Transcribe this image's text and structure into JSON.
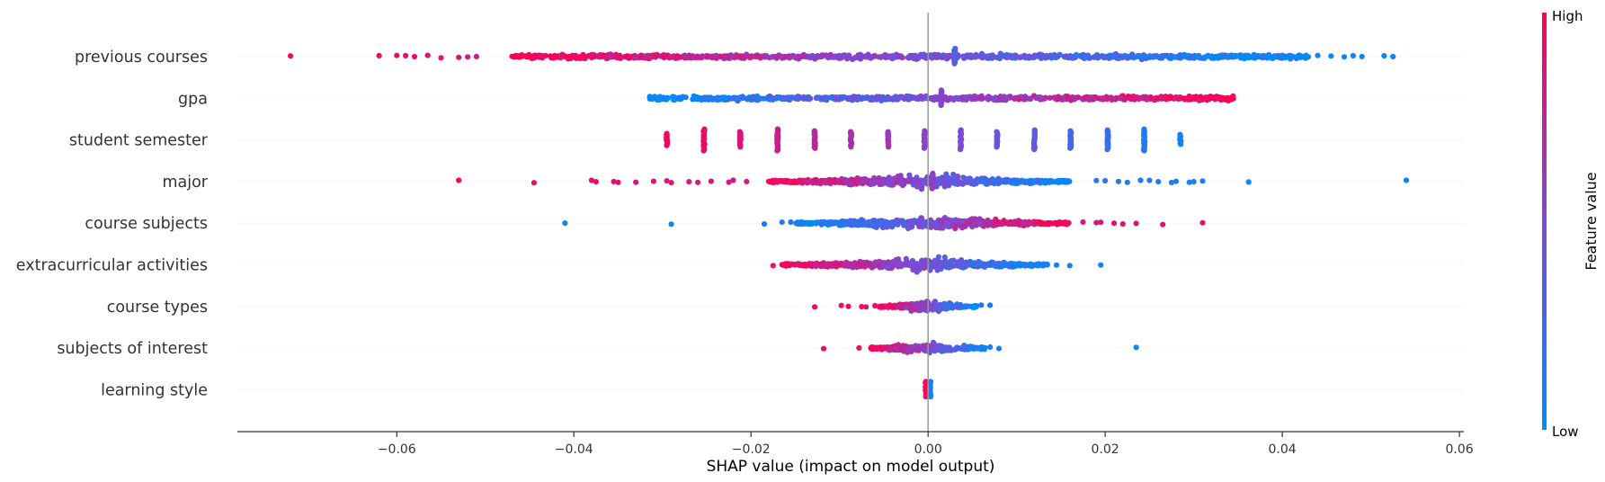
{
  "chart_data": {
    "type": "scatter",
    "subtype": "shap-beeswarm",
    "title": "",
    "xlabel": "SHAP value (impact on model output)",
    "xlim": [
      -0.078,
      0.0605
    ],
    "xticks": [
      -0.06,
      -0.04,
      -0.02,
      0.0,
      0.02,
      0.04,
      0.06
    ],
    "xtick_labels": [
      "−0.06",
      "−0.04",
      "−0.02",
      "0.00",
      "0.02",
      "0.04",
      "0.06"
    ],
    "zero_line": 0.0,
    "grid": false,
    "colorbar": {
      "title": "Feature value",
      "high_label": "High",
      "low_label": "Low",
      "low_color": "#008bfb",
      "high_color": "#ff0052",
      "placement": "right"
    },
    "features": [
      {
        "name": "previous courses",
        "shape": "wide",
        "min": -0.072,
        "max": 0.0525,
        "core": [
          -0.047,
          0.043
        ],
        "points": [
          [
            -0.072,
            0.95
          ],
          [
            -0.062,
            0.95
          ],
          [
            -0.06,
            0.93
          ],
          [
            -0.059,
            0.92
          ],
          [
            -0.058,
            0.9
          ],
          [
            -0.0565,
            0.88
          ],
          [
            -0.055,
            0.86
          ],
          [
            -0.053,
            0.84
          ],
          [
            -0.052,
            0.83
          ],
          [
            -0.051,
            0.82
          ],
          [
            0.04,
            0.12
          ],
          [
            0.041,
            0.11
          ],
          [
            0.042,
            0.1
          ],
          [
            0.044,
            0.08
          ],
          [
            0.0455,
            0.07
          ],
          [
            0.047,
            0.06
          ],
          [
            0.048,
            0.05
          ],
          [
            0.049,
            0.04
          ],
          [
            0.0515,
            0.03
          ],
          [
            0.0525,
            0.02
          ]
        ],
        "stacks": [
          {
            "x": 0.003,
            "h": 9,
            "v": 0.35
          }
        ]
      },
      {
        "name": "gpa",
        "shape": "wide",
        "min": -0.0315,
        "max": 0.0345,
        "core": [
          -0.0315,
          0.0345
        ],
        "points": [],
        "stacks": [
          {
            "x": 0.0015,
            "h": 9,
            "v": 0.55
          }
        ]
      },
      {
        "name": "student semester",
        "shape": "stacks",
        "min": -0.0295,
        "max": 0.0285,
        "core": [
          0,
          0
        ],
        "points": [],
        "stacks": [
          {
            "x": -0.0295,
            "h": 7,
            "v": 0.98
          },
          {
            "x": -0.0253,
            "h": 12,
            "v": 0.92
          },
          {
            "x": -0.0212,
            "h": 9,
            "v": 0.86
          },
          {
            "x": -0.017,
            "h": 12,
            "v": 0.8
          },
          {
            "x": -0.0128,
            "h": 10,
            "v": 0.74
          },
          {
            "x": -0.0087,
            "h": 9,
            "v": 0.68
          },
          {
            "x": -0.0045,
            "h": 9,
            "v": 0.62
          },
          {
            "x": -0.0004,
            "h": 10,
            "v": 0.56
          },
          {
            "x": 0.0037,
            "h": 11,
            "v": 0.5
          },
          {
            "x": 0.0078,
            "h": 9,
            "v": 0.44
          },
          {
            "x": 0.012,
            "h": 11,
            "v": 0.36
          },
          {
            "x": 0.0161,
            "h": 10,
            "v": 0.28
          },
          {
            "x": 0.0203,
            "h": 11,
            "v": 0.2
          },
          {
            "x": 0.0244,
            "h": 12,
            "v": 0.12
          },
          {
            "x": 0.0285,
            "h": 6,
            "v": 0.06
          }
        ]
      },
      {
        "name": "major",
        "shape": "dense-center",
        "min": -0.053,
        "max": 0.054,
        "core": [
          -0.018,
          0.016
        ],
        "points": [
          [
            -0.053,
            0.95
          ],
          [
            -0.0445,
            0.93
          ],
          [
            -0.038,
            0.9
          ],
          [
            -0.0375,
            0.9
          ],
          [
            -0.0355,
            0.88
          ],
          [
            -0.035,
            0.88
          ],
          [
            -0.033,
            0.86
          ],
          [
            -0.031,
            0.85
          ],
          [
            -0.0295,
            0.84
          ],
          [
            -0.029,
            0.84
          ],
          [
            -0.027,
            0.83
          ],
          [
            -0.026,
            0.82
          ],
          [
            -0.0245,
            0.82
          ],
          [
            -0.0225,
            0.81
          ],
          [
            -0.022,
            0.81
          ],
          [
            -0.0205,
            0.8
          ],
          [
            0.019,
            0.2
          ],
          [
            0.02,
            0.19
          ],
          [
            0.0215,
            0.18
          ],
          [
            0.0225,
            0.17
          ],
          [
            0.024,
            0.16
          ],
          [
            0.025,
            0.15
          ],
          [
            0.026,
            0.14
          ],
          [
            0.0275,
            0.13
          ],
          [
            0.028,
            0.12
          ],
          [
            0.0295,
            0.12
          ],
          [
            0.03,
            0.11
          ],
          [
            0.031,
            0.1
          ],
          [
            0.0362,
            0.08
          ],
          [
            0.054,
            0.02
          ]
        ],
        "stacks": [
          {
            "x": 0.0005,
            "h": 9,
            "v": 0.55
          }
        ]
      },
      {
        "name": "course subjects",
        "shape": "dense-center",
        "min": -0.041,
        "max": 0.031,
        "core": [
          -0.015,
          0.016
        ],
        "points": [
          [
            -0.041,
            0.05
          ],
          [
            -0.029,
            0.08
          ],
          [
            -0.0185,
            0.12
          ],
          [
            -0.0165,
            0.14
          ],
          [
            -0.0155,
            0.15
          ],
          [
            -0.0145,
            0.16
          ],
          [
            0.0175,
            0.82
          ],
          [
            0.019,
            0.84
          ],
          [
            0.0195,
            0.85
          ],
          [
            0.021,
            0.86
          ],
          [
            0.022,
            0.87
          ],
          [
            0.0235,
            0.88
          ],
          [
            0.0265,
            0.9
          ],
          [
            0.031,
            0.95
          ]
        ],
        "stacks": []
      },
      {
        "name": "extracurricular activities",
        "shape": "dense-center",
        "min": -0.0175,
        "max": 0.0195,
        "core": [
          -0.0165,
          0.0135
        ],
        "points": [
          [
            -0.0175,
            0.92
          ],
          [
            0.0145,
            0.1
          ],
          [
            0.016,
            0.09
          ],
          [
            0.0195,
            0.06
          ]
        ],
        "stacks": []
      },
      {
        "name": "course types",
        "shape": "dense-center",
        "min": -0.0128,
        "max": 0.007,
        "core": [
          -0.0055,
          0.0055
        ],
        "points": [
          [
            -0.0128,
            0.95
          ],
          [
            -0.0098,
            0.92
          ],
          [
            -0.009,
            0.91
          ],
          [
            -0.0075,
            0.9
          ],
          [
            -0.007,
            0.89
          ],
          [
            -0.006,
            0.88
          ],
          [
            0.006,
            0.12
          ],
          [
            0.007,
            0.1
          ]
        ],
        "stacks": []
      },
      {
        "name": "subjects of interest",
        "shape": "dense-center",
        "min": -0.0118,
        "max": 0.0235,
        "core": [
          -0.0065,
          0.0065
        ],
        "points": [
          [
            -0.0118,
            0.95
          ],
          [
            -0.0078,
            0.92
          ],
          [
            -0.006,
            0.9
          ],
          [
            0.0055,
            0.12
          ],
          [
            0.006,
            0.11
          ],
          [
            0.007,
            0.1
          ],
          [
            0.008,
            0.09
          ],
          [
            0.0235,
            0.05
          ]
        ],
        "stacks": []
      },
      {
        "name": "learning style",
        "shape": "split",
        "min": -0.0004,
        "max": 0.0004,
        "core": [
          0,
          0
        ],
        "points": [],
        "stacks": [
          {
            "x": -0.00025,
            "h": 9,
            "v": 0.97
          },
          {
            "x": 0.00025,
            "h": 9,
            "v": 0.05
          }
        ]
      }
    ]
  }
}
